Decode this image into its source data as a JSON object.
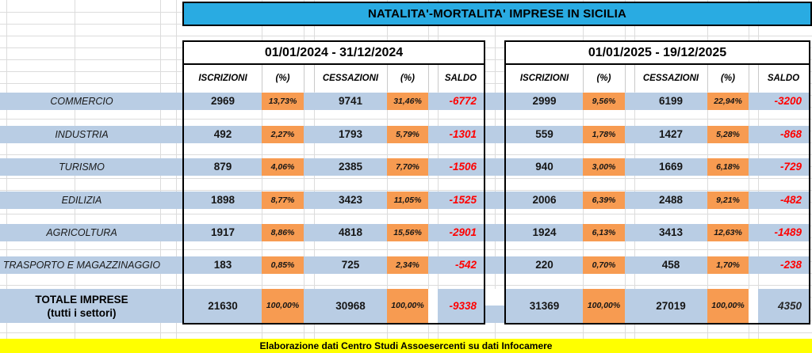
{
  "title": "NATALITA'-MORTALITA' IMPRESE IN SICILIA",
  "footer": "Elaborazione dati Centro Studi Assoesercenti su dati Infocamere",
  "periods": [
    {
      "label": "01/01/2024 - 31/12/2024"
    },
    {
      "label": "01/01/2025 - 19/12/2025"
    }
  ],
  "columns": [
    "ISCRIZIONI",
    "(%)",
    "CESSAZIONI",
    "(%)",
    "SALDO"
  ],
  "rows": [
    {
      "sector": "COMMERCIO",
      "y2024": {
        "iscrizioni": "2969",
        "iscrizioni_pct": "13,73%",
        "cessazioni": "9741",
        "cessazioni_pct": "31,46%",
        "saldo": "-6772"
      },
      "y2025": {
        "iscrizioni": "2999",
        "iscrizioni_pct": "9,56%",
        "cessazioni": "6199",
        "cessazioni_pct": "22,94%",
        "saldo": "-3200"
      }
    },
    {
      "sector": "INDUSTRIA",
      "y2024": {
        "iscrizioni": "492",
        "iscrizioni_pct": "2,27%",
        "cessazioni": "1793",
        "cessazioni_pct": "5,79%",
        "saldo": "-1301"
      },
      "y2025": {
        "iscrizioni": "559",
        "iscrizioni_pct": "1,78%",
        "cessazioni": "1427",
        "cessazioni_pct": "5,28%",
        "saldo": "-868"
      }
    },
    {
      "sector": "TURISMO",
      "y2024": {
        "iscrizioni": "879",
        "iscrizioni_pct": "4,06%",
        "cessazioni": "2385",
        "cessazioni_pct": "7,70%",
        "saldo": "-1506"
      },
      "y2025": {
        "iscrizioni": "940",
        "iscrizioni_pct": "3,00%",
        "cessazioni": "1669",
        "cessazioni_pct": "6,18%",
        "saldo": "-729"
      }
    },
    {
      "sector": "EDILIZIA",
      "y2024": {
        "iscrizioni": "1898",
        "iscrizioni_pct": "8,77%",
        "cessazioni": "3423",
        "cessazioni_pct": "11,05%",
        "saldo": "-1525"
      },
      "y2025": {
        "iscrizioni": "2006",
        "iscrizioni_pct": "6,39%",
        "cessazioni": "2488",
        "cessazioni_pct": "9,21%",
        "saldo": "-482"
      }
    },
    {
      "sector": "AGRICOLTURA",
      "y2024": {
        "iscrizioni": "1917",
        "iscrizioni_pct": "8,86%",
        "cessazioni": "4818",
        "cessazioni_pct": "15,56%",
        "saldo": "-2901"
      },
      "y2025": {
        "iscrizioni": "1924",
        "iscrizioni_pct": "6,13%",
        "cessazioni": "3413",
        "cessazioni_pct": "12,63%",
        "saldo": "-1489"
      }
    },
    {
      "sector": "TRASPORTO E MAGAZZINAGGIO",
      "y2024": {
        "iscrizioni": "183",
        "iscrizioni_pct": "0,85%",
        "cessazioni": "725",
        "cessazioni_pct": "2,34%",
        "saldo": "-542"
      },
      "y2025": {
        "iscrizioni": "220",
        "iscrizioni_pct": "0,70%",
        "cessazioni": "458",
        "cessazioni_pct": "1,70%",
        "saldo": "-238"
      }
    }
  ],
  "total": {
    "sector_line1": "TOTALE IMPRESE",
    "sector_line2": "(tutti i settori)",
    "y2024": {
      "iscrizioni": "21630",
      "iscrizioni_pct": "100,00%",
      "cessazioni": "30968",
      "cessazioni_pct": "100,00%",
      "saldo": "-9338"
    },
    "y2025": {
      "iscrizioni": "31369",
      "iscrizioni_pct": "100,00%",
      "cessazioni": "27019",
      "cessazioni_pct": "100,00%",
      "saldo": "4350"
    }
  },
  "colors": {
    "header_cyan": "#29ABE2",
    "row_blue": "#B9CDE4",
    "pct_orange": "#F79B51",
    "saldo_red": "#FF0000",
    "footer_yellow": "#FFFF00"
  }
}
